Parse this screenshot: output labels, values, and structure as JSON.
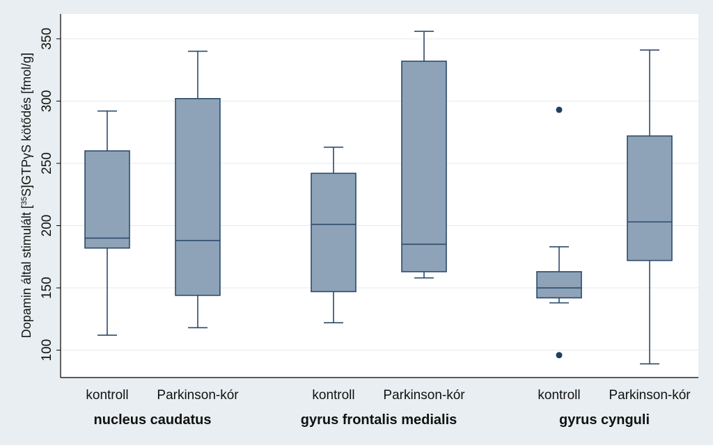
{
  "chart_data": {
    "type": "box",
    "ylabel_parts": [
      "Dopamin által stimulált [",
      "35",
      "S]GTP",
      "γ",
      "S kötődés [fmol/g]"
    ],
    "ylim": [
      78,
      370
    ],
    "yticks": [
      100,
      150,
      200,
      250,
      300,
      350
    ],
    "grid": true,
    "colors": {
      "box_fill": "#8ea3b8",
      "box_stroke": "#2b4a6a",
      "outlier": "#1f3f63",
      "grid": "#e3e9ec",
      "plot_bg": "#ffffff"
    },
    "groups": [
      {
        "label": "nucleus caudatus",
        "boxes": [
          {
            "category": "kontroll",
            "whisker_low": 112,
            "q1": 182,
            "median": 190,
            "q3": 260,
            "whisker_high": 292,
            "outliers": []
          },
          {
            "category": "Parkinson-kór",
            "whisker_low": 118,
            "q1": 144,
            "median": 188,
            "q3": 302,
            "whisker_high": 340,
            "outliers": []
          }
        ]
      },
      {
        "label": "gyrus frontalis medialis",
        "boxes": [
          {
            "category": "kontroll",
            "whisker_low": 122,
            "q1": 147,
            "median": 201,
            "q3": 242,
            "whisker_high": 263,
            "outliers": []
          },
          {
            "category": "Parkinson-kór",
            "whisker_low": 158,
            "q1": 163,
            "median": 185,
            "q3": 332,
            "whisker_high": 356,
            "outliers": []
          }
        ]
      },
      {
        "label": "gyrus cynguli",
        "boxes": [
          {
            "category": "kontroll",
            "whisker_low": 138,
            "q1": 142,
            "median": 150,
            "q3": 163,
            "whisker_high": 183,
            "outliers": [
              96,
              293
            ]
          },
          {
            "category": "Parkinson-kór",
            "whisker_low": 89,
            "q1": 172,
            "median": 203,
            "q3": 272,
            "whisker_high": 341,
            "outliers": []
          }
        ]
      }
    ]
  }
}
